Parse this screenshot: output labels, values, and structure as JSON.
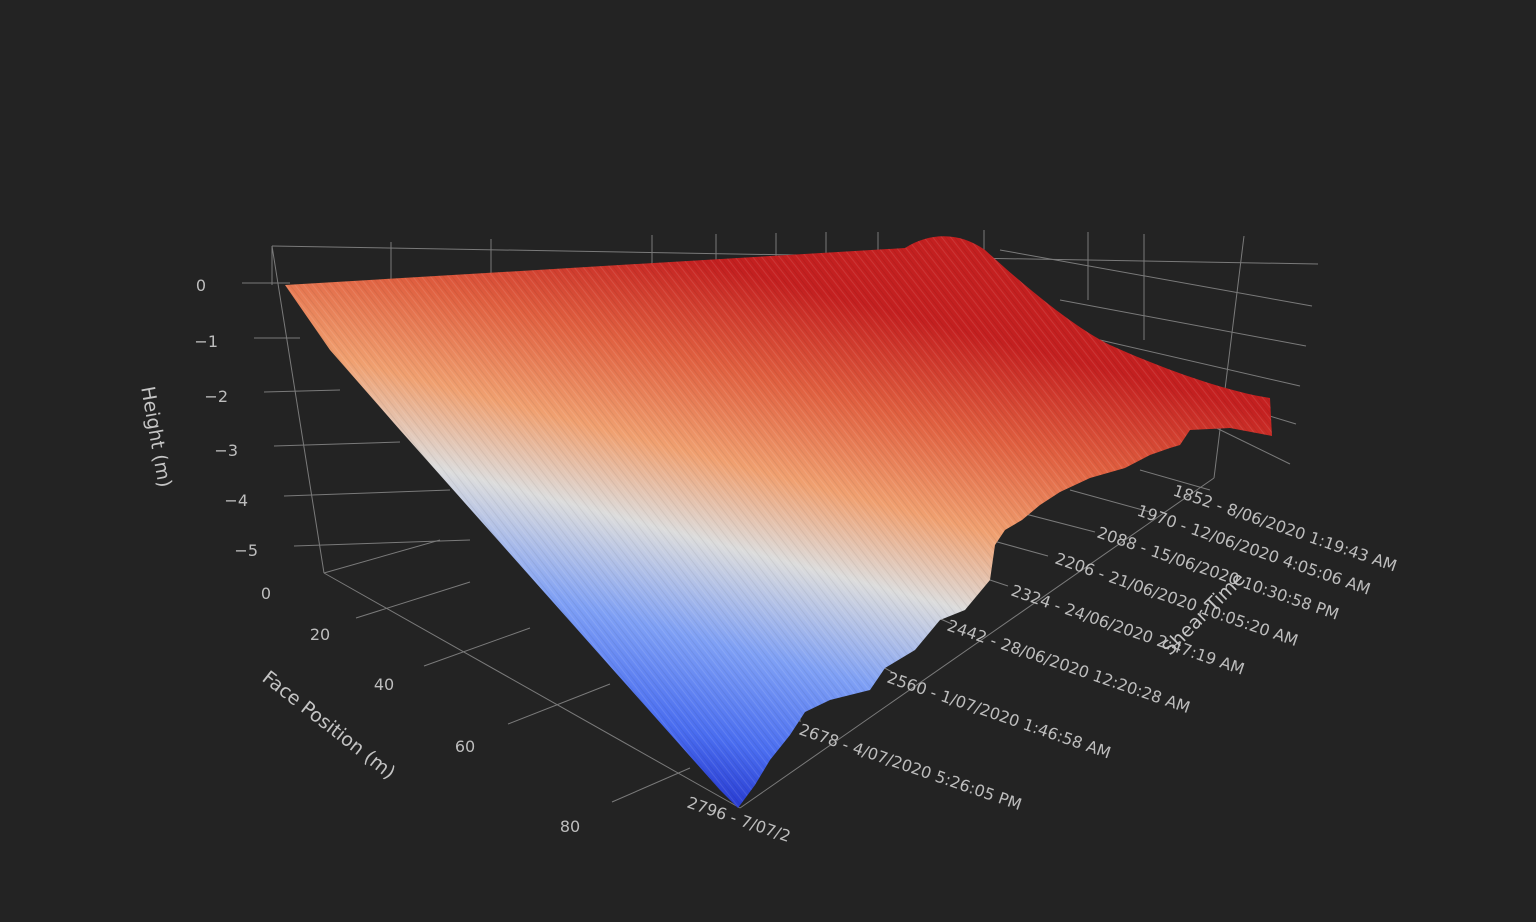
{
  "chart_data": {
    "type": "surface3d",
    "xlabel": "Face Position (m)",
    "ylabel": "Shear Time",
    "zlabel": "Height (m)",
    "x_ticks": [
      "0",
      "20",
      "40",
      "60",
      "80"
    ],
    "z_ticks": [
      "0",
      "−1",
      "−2",
      "−3",
      "−4",
      "−5"
    ],
    "y_ticks": [
      "1852 - 8/06/2020 1:19:43 AM",
      "1970 - 12/06/2020 4:05:06 AM",
      "2088 - 15/06/2020 10:30:58 PM",
      "2206 - 21/06/2020 10:05:20 AM",
      "2324 - 24/06/2020 2:47:19 AM",
      "2442 - 28/06/2020 12:20:28 AM",
      "2560 - 1/07/2020 1:46:58 AM",
      "2678 - 4/07/2020 5:26:05 PM",
      "2796 - 7/07/2"
    ],
    "x_range": [
      0,
      90
    ],
    "z_range": [
      -5.7,
      0.3
    ],
    "colorscale": [
      "#1e2cc8",
      "#4a6df0",
      "#7fa0f5",
      "#dcdcdc",
      "#f0a070",
      "#e06040",
      "#c42020"
    ],
    "surface_profile": {
      "face_position": [
        0,
        10,
        20,
        30,
        40,
        50,
        60,
        70,
        80,
        90
      ],
      "height": [
        0.0,
        -0.55,
        -1.15,
        -1.8,
        -2.45,
        -3.1,
        -3.7,
        -4.3,
        -4.9,
        -5.5
      ]
    },
    "grid": true,
    "legend": "none"
  }
}
